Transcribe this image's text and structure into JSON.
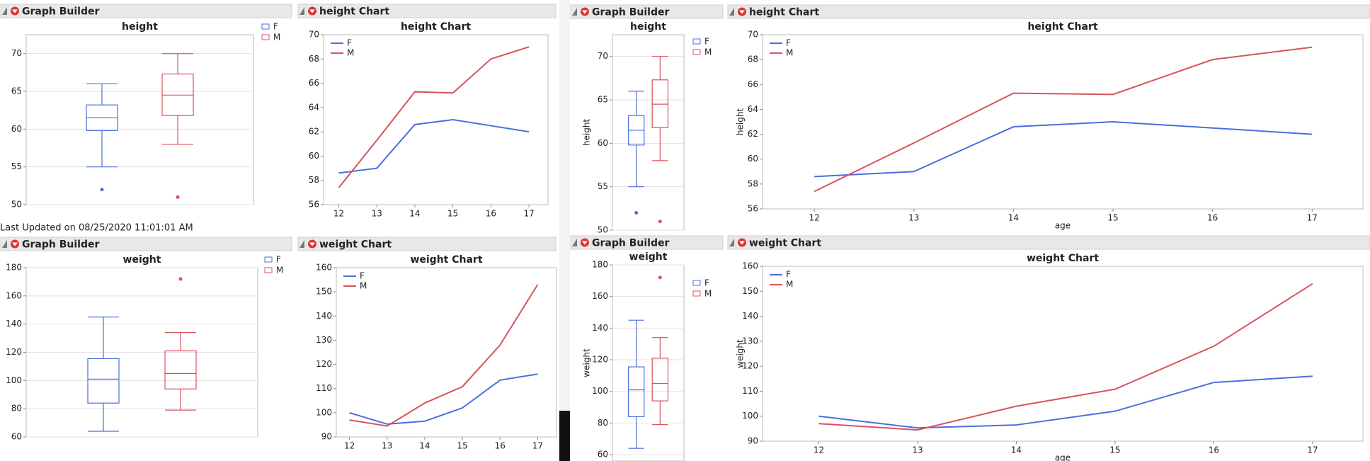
{
  "last_updated": "Last Updated on 08/25/2020 11:01:01 AM",
  "chart_data": [
    {
      "type": "box",
      "panel_title": "Graph Builder",
      "title": "height",
      "ylim": [
        50,
        72.5
      ],
      "yticks": [
        50,
        55,
        60,
        65,
        70
      ],
      "grid": true,
      "series": [
        {
          "name": "F",
          "color": "#4a6fdc",
          "whisker_low": 55,
          "q1": 59.8,
          "median": 61.5,
          "q3": 63.2,
          "whisker_high": 66,
          "outliers": [
            52
          ]
        },
        {
          "name": "M",
          "color": "#d8535e",
          "whisker_low": 58,
          "q1": 61.8,
          "median": 64.5,
          "q3": 67.3,
          "whisker_high": 70,
          "outliers": [
            51
          ]
        }
      ]
    },
    {
      "type": "line",
      "panel_title": "height Chart",
      "title": "height Chart",
      "x": [
        12,
        13,
        14,
        15,
        16,
        17
      ],
      "xlim": [
        11.6,
        17.5
      ],
      "xticks": [
        12,
        13,
        14,
        15,
        16,
        17
      ],
      "ylim": [
        56,
        70
      ],
      "yticks": [
        56,
        58,
        60,
        62,
        64,
        66,
        68,
        70
      ],
      "grid": false,
      "series": [
        {
          "name": "F",
          "color": "#4a6fdc",
          "values": [
            58.6,
            59.0,
            62.6,
            63.0,
            62.5,
            62.0
          ]
        },
        {
          "name": "M",
          "color": "#d8535e",
          "values": [
            57.4,
            61.3,
            65.3,
            65.2,
            68.0,
            69.0
          ]
        }
      ]
    },
    {
      "type": "box",
      "panel_title": "Graph Builder",
      "title": "weight",
      "ylim": [
        60,
        180
      ],
      "yticks": [
        60,
        80,
        100,
        120,
        140,
        160,
        180
      ],
      "grid": true,
      "series": [
        {
          "name": "F",
          "color": "#4a6fdc",
          "whisker_low": 64,
          "q1": 84,
          "median": 101,
          "q3": 115.5,
          "whisker_high": 145,
          "outliers": []
        },
        {
          "name": "M",
          "color": "#d8535e",
          "whisker_low": 79,
          "q1": 94,
          "median": 105,
          "q3": 121,
          "whisker_high": 134,
          "outliers": [
            172
          ]
        }
      ]
    },
    {
      "type": "line",
      "panel_title": "weight Chart",
      "title": "weight Chart",
      "x": [
        12,
        13,
        14,
        15,
        16,
        17
      ],
      "xlim": [
        11.65,
        17.5
      ],
      "xticks": [
        12,
        13,
        14,
        15,
        16,
        17
      ],
      "ylim": [
        90,
        160
      ],
      "yticks": [
        90,
        100,
        110,
        120,
        130,
        140,
        150,
        160
      ],
      "grid": false,
      "series": [
        {
          "name": "F",
          "color": "#4a6fdc",
          "values": [
            100,
            95.3,
            96.5,
            102,
            113.5,
            116
          ]
        },
        {
          "name": "M",
          "color": "#d8535e",
          "values": [
            97,
            94.5,
            104,
            110.8,
            128,
            153
          ]
        }
      ]
    },
    {
      "type": "box",
      "panel_title": "Graph Builder",
      "title": "height",
      "ylabel": "height",
      "ylim": [
        50,
        72.5
      ],
      "yticks": [
        50,
        55,
        60,
        65,
        70
      ],
      "grid": true,
      "series": [
        {
          "name": "F",
          "color": "#4a6fdc",
          "whisker_low": 55,
          "q1": 59.8,
          "median": 61.5,
          "q3": 63.2,
          "whisker_high": 66,
          "outliers": [
            52
          ]
        },
        {
          "name": "M",
          "color": "#d8535e",
          "whisker_low": 58,
          "q1": 61.8,
          "median": 64.5,
          "q3": 67.3,
          "whisker_high": 70,
          "outliers": [
            51
          ]
        }
      ]
    },
    {
      "type": "line",
      "panel_title": "height Chart",
      "title": "height Chart",
      "xlabel": "age",
      "ylabel": "height",
      "x": [
        12,
        13,
        14,
        15,
        16,
        17
      ],
      "xlim": [
        11.48,
        17.51
      ],
      "xticks": [
        12,
        13,
        14,
        15,
        16,
        17
      ],
      "ylim": [
        56,
        70
      ],
      "yticks": [
        56,
        58,
        60,
        62,
        64,
        66,
        68,
        70
      ],
      "grid": false,
      "series": [
        {
          "name": "F",
          "color": "#4a6fdc",
          "values": [
            58.6,
            59.0,
            62.6,
            63.0,
            62.5,
            62.0
          ]
        },
        {
          "name": "M",
          "color": "#d8535e",
          "values": [
            57.4,
            61.3,
            65.3,
            65.2,
            68.0,
            69.0
          ]
        }
      ]
    },
    {
      "type": "box",
      "panel_title": "Graph Builder",
      "title": "weight",
      "ylabel": "weight",
      "ylim": [
        56,
        180
      ],
      "yticks": [
        60,
        80,
        100,
        120,
        140,
        160,
        180
      ],
      "grid": true,
      "series": [
        {
          "name": "F",
          "color": "#4a6fdc",
          "whisker_low": 64,
          "q1": 84,
          "median": 101,
          "q3": 115.5,
          "whisker_high": 145,
          "outliers": []
        },
        {
          "name": "M",
          "color": "#d8535e",
          "whisker_low": 79,
          "q1": 94,
          "median": 105,
          "q3": 121,
          "whisker_high": 134,
          "outliers": [
            172
          ]
        }
      ]
    },
    {
      "type": "line",
      "panel_title": "weight Chart",
      "title": "weight Chart",
      "xlabel": "age",
      "ylabel": "weight",
      "x": [
        12,
        13,
        14,
        15,
        16,
        17
      ],
      "xlim": [
        11.43,
        17.51
      ],
      "xticks": [
        12,
        13,
        14,
        15,
        16,
        17
      ],
      "ylim": [
        90,
        160
      ],
      "yticks": [
        90,
        100,
        110,
        120,
        130,
        140,
        150,
        160
      ],
      "grid": false,
      "series": [
        {
          "name": "F",
          "color": "#4a6fdc",
          "values": [
            100,
            95.3,
            96.5,
            102,
            113.5,
            116
          ]
        },
        {
          "name": "M",
          "color": "#d8535e",
          "values": [
            97,
            94.5,
            104,
            110.8,
            128,
            153
          ]
        }
      ]
    }
  ]
}
